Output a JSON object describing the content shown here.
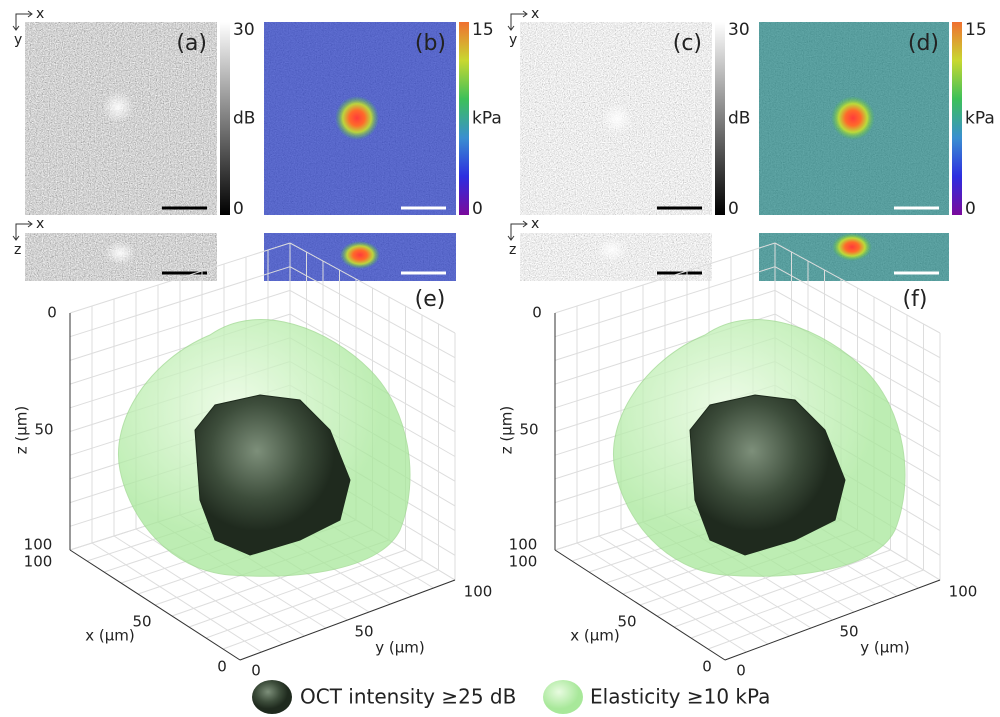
{
  "panels": [
    {
      "label": "(a)",
      "colorbar": {
        "max": "30",
        "unit": "dB",
        "min": "0"
      }
    },
    {
      "label": "(b)",
      "colorbar": {
        "max": "15",
        "unit": "kPa",
        "min": "0"
      }
    },
    {
      "label": "(c)",
      "colorbar": {
        "max": "30",
        "unit": "dB",
        "min": "0"
      }
    },
    {
      "label": "(d)",
      "colorbar": {
        "max": "15",
        "unit": "kPa",
        "min": "0"
      }
    }
  ],
  "orientation": {
    "horizontal": "x",
    "vertical_top": "y",
    "vertical_bottom": "z"
  },
  "plots3d": [
    {
      "label": "(e)"
    },
    {
      "label": "(f)"
    }
  ],
  "axes3d": {
    "z_label": "z (µm)",
    "x_label": "x (µm)",
    "y_label": "y (µm)",
    "z_ticks": [
      "0",
      "50",
      "100"
    ],
    "x_ticks": [
      "100",
      "50",
      "0"
    ],
    "y_ticks": [
      "0",
      "50",
      "100"
    ]
  },
  "legend": [
    "OCT intensity ≥25 dB",
    "Elasticity ≥10 kPa"
  ]
}
